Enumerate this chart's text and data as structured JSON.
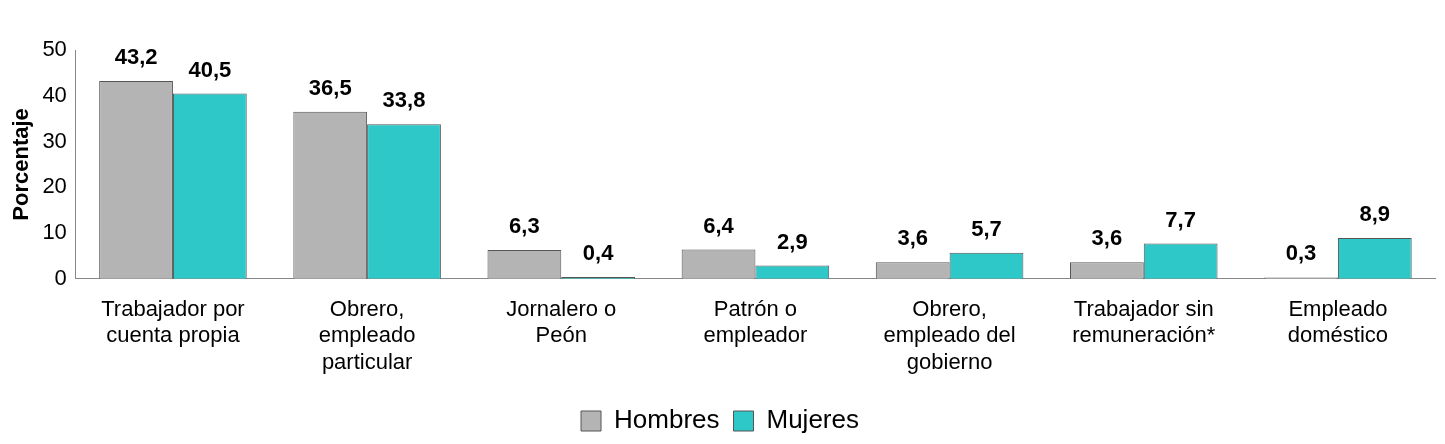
{
  "chart_data": {
    "type": "bar",
    "ylabel": "Porcentaje",
    "categories": [
      "Trabajador por cuenta propia",
      "Obrero, empleado particular",
      "Jornalero o Peón",
      "Patrón o empleador",
      "Obrero, empleado del gobierno",
      "Trabajador sin remuneración*",
      "Empleado doméstico"
    ],
    "series": [
      {
        "name": "Hombres",
        "color": "#b4b4b4",
        "values": [
          43.2,
          36.5,
          6.3,
          6.4,
          3.6,
          3.6,
          0.3
        ],
        "value_labels": [
          "43,2",
          "36,5",
          "6,3",
          "6,4",
          "3,6",
          "3,6",
          "0,3"
        ]
      },
      {
        "name": "Mujeres",
        "color": "#2ec8c8",
        "values": [
          40.5,
          33.8,
          0.4,
          2.9,
          5.7,
          7.7,
          8.9
        ],
        "value_labels": [
          "40,5",
          "33,8",
          "0,4",
          "2,9",
          "5,7",
          "7,7",
          "8,9"
        ]
      }
    ],
    "ylim": [
      0,
      50
    ],
    "yticks": [
      0,
      10,
      20,
      30,
      40,
      50
    ],
    "grid": false,
    "legend": "bottom"
  }
}
